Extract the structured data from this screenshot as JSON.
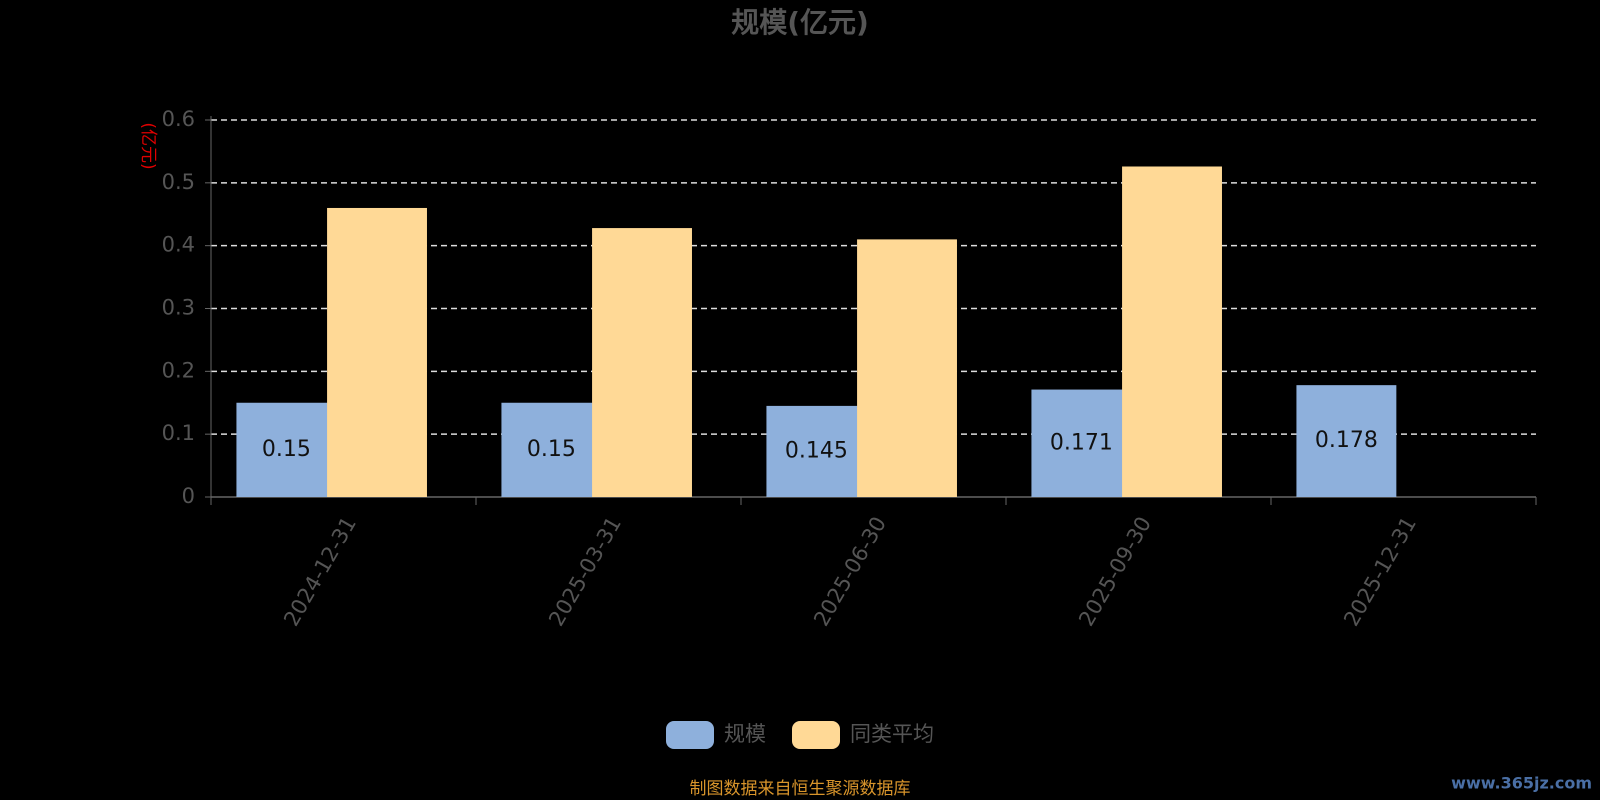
{
  "chart_data": {
    "type": "bar",
    "title": "规模(亿元)",
    "y_axis_label": "(亿元)",
    "categories": [
      "2024-12-31",
      "2025-03-31",
      "2025-06-30",
      "2025-09-30",
      "2025-12-31"
    ],
    "series": [
      {
        "name": "规模",
        "color": "#8eb0dc",
        "values": [
          0.15,
          0.15,
          0.145,
          0.171,
          0.178
        ],
        "show_labels": true
      },
      {
        "name": "同类平均",
        "color": "#ffd996",
        "values": [
          0.46,
          0.428,
          0.41,
          0.526,
          null
        ]
      }
    ],
    "ylim": [
      0,
      0.6
    ],
    "yticks": [
      0,
      0.1,
      0.2,
      0.3,
      0.4,
      0.5,
      0.6
    ],
    "grid": true,
    "legend": "bottom"
  },
  "source": "制图数据来自恒生聚源数据库",
  "watermark": "www.365jz.com"
}
